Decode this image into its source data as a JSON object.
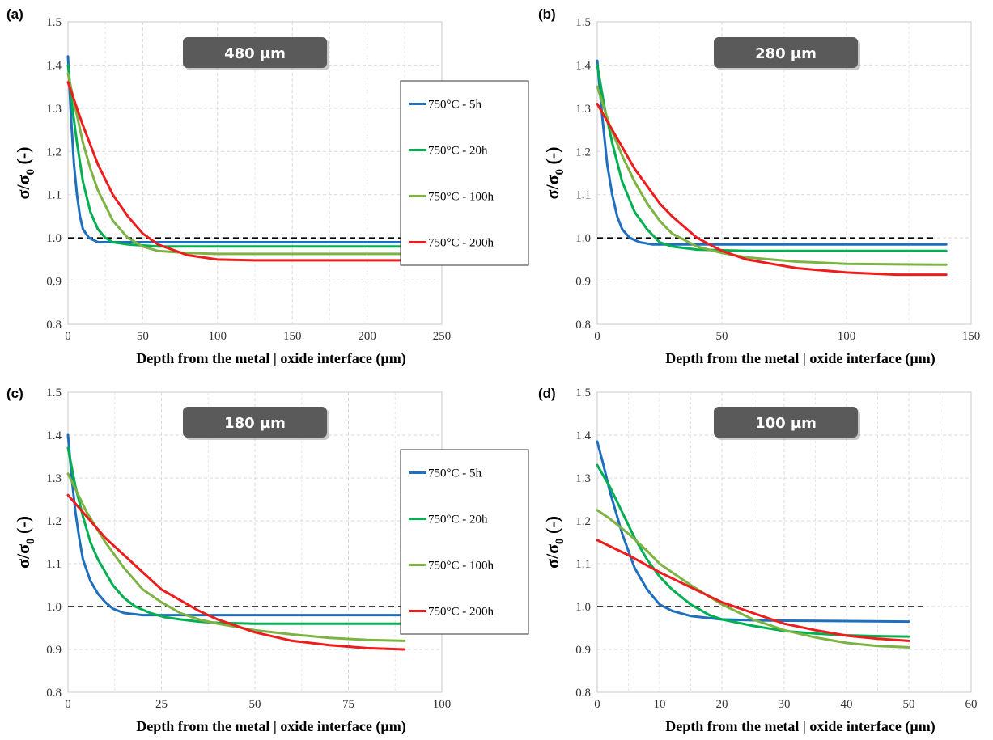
{
  "chart_data": [
    {
      "type": "line",
      "panel_label": "(a)",
      "badge": "480 µm",
      "xlabel": "Depth from the metal | oxide interface (µm)",
      "ylabel": "σ/σ₀ (-)",
      "ylabel_main": "σ/σ",
      "ylabel_sub": "0",
      "ylabel_tail": " (-)",
      "xlim": [
        0,
        250
      ],
      "ylim": [
        0.8,
        1.5
      ],
      "xticks": [
        "0",
        "50",
        "100",
        "150",
        "200",
        "250"
      ],
      "yticks": [
        "0.8",
        "0.9",
        "1.0",
        "1.1",
        "1.2",
        "1.3",
        "1.4",
        "1.5"
      ],
      "grid": true,
      "legend": "right",
      "reference_line": {
        "y": 1.0,
        "style": "dashed",
        "x_range": [
          0,
          226
        ]
      },
      "series": [
        {
          "name": "750°C - 5h",
          "color": "#1f6fbf",
          "x": [
            0,
            2,
            4,
            6,
            8,
            10,
            14,
            20,
            30,
            50,
            100,
            150,
            225
          ],
          "y": [
            1.42,
            1.28,
            1.17,
            1.1,
            1.05,
            1.02,
            1.0,
            0.99,
            0.99,
            0.99,
            0.99,
            0.99,
            0.99
          ]
        },
        {
          "name": "750°C - 20h",
          "color": "#00b050",
          "x": [
            0,
            3,
            6,
            10,
            15,
            20,
            25,
            30,
            40,
            60,
            100,
            150,
            225
          ],
          "y": [
            1.4,
            1.3,
            1.22,
            1.13,
            1.06,
            1.02,
            1.0,
            0.99,
            0.985,
            0.98,
            0.98,
            0.98,
            0.98
          ]
        },
        {
          "name": "750°C - 100h",
          "color": "#7cb342",
          "x": [
            0,
            5,
            10,
            15,
            20,
            30,
            40,
            50,
            60,
            80,
            100,
            150,
            225
          ],
          "y": [
            1.38,
            1.3,
            1.22,
            1.16,
            1.11,
            1.04,
            1.0,
            0.98,
            0.97,
            0.965,
            0.963,
            0.963,
            0.963
          ]
        },
        {
          "name": "750°C - 200h",
          "color": "#ee1c1c",
          "x": [
            0,
            5,
            10,
            20,
            30,
            40,
            50,
            60,
            80,
            100,
            125,
            150,
            225
          ],
          "y": [
            1.36,
            1.31,
            1.26,
            1.17,
            1.1,
            1.05,
            1.01,
            0.985,
            0.96,
            0.95,
            0.948,
            0.948,
            0.948
          ]
        }
      ]
    },
    {
      "type": "line",
      "panel_label": "(b)",
      "badge": "280 µm",
      "xlabel": "Depth from the metal | oxide interface (µm)",
      "ylabel": "σ/σ₀ (-)",
      "ylabel_main": "σ/σ",
      "ylabel_sub": "0",
      "ylabel_tail": " (-)",
      "xlim": [
        0,
        150
      ],
      "ylim": [
        0.8,
        1.5
      ],
      "xticks": [
        "0",
        "50",
        "100",
        "150"
      ],
      "yticks": [
        "0.8",
        "0.9",
        "1.0",
        "1.1",
        "1.2",
        "1.3",
        "1.4",
        "1.5"
      ],
      "grid": true,
      "legend": "none",
      "reference_line": {
        "y": 1.0,
        "style": "dashed",
        "x_range": [
          0,
          135
        ]
      },
      "series": [
        {
          "name": "750°C - 5h",
          "color": "#1f6fbf",
          "x": [
            0,
            2,
            4,
            6,
            8,
            10,
            13,
            17,
            22,
            30,
            50,
            100,
            140
          ],
          "y": [
            1.41,
            1.28,
            1.17,
            1.1,
            1.05,
            1.02,
            1.0,
            0.99,
            0.985,
            0.985,
            0.985,
            0.985,
            0.985
          ]
        },
        {
          "name": "750°C - 20h",
          "color": "#00b050",
          "x": [
            0,
            3,
            6,
            10,
            15,
            20,
            25,
            30,
            40,
            60,
            100,
            140
          ],
          "y": [
            1.4,
            1.3,
            1.22,
            1.13,
            1.06,
            1.02,
            0.99,
            0.98,
            0.973,
            0.97,
            0.97,
            0.97
          ]
        },
        {
          "name": "750°C - 100h",
          "color": "#7cb342",
          "x": [
            0,
            5,
            10,
            15,
            20,
            25,
            30,
            40,
            50,
            60,
            80,
            100,
            140
          ],
          "y": [
            1.35,
            1.26,
            1.19,
            1.13,
            1.08,
            1.04,
            1.01,
            0.98,
            0.965,
            0.955,
            0.945,
            0.94,
            0.938
          ]
        },
        {
          "name": "750°C - 200h",
          "color": "#ee1c1c",
          "x": [
            0,
            5,
            10,
            15,
            20,
            25,
            30,
            40,
            50,
            60,
            70,
            80,
            100,
            120,
            140
          ],
          "y": [
            1.31,
            1.26,
            1.21,
            1.16,
            1.12,
            1.08,
            1.05,
            1.0,
            0.97,
            0.95,
            0.94,
            0.93,
            0.92,
            0.915,
            0.915
          ]
        }
      ]
    },
    {
      "type": "line",
      "panel_label": "(c)",
      "badge": "180 µm",
      "xlabel": "Depth from the metal | oxide interface (µm)",
      "ylabel": "σ/σ₀ (-)",
      "ylabel_main": "σ/σ",
      "ylabel_sub": "0",
      "ylabel_tail": " (-)",
      "xlim": [
        0,
        100
      ],
      "ylim": [
        0.8,
        1.5
      ],
      "xticks": [
        "0",
        "25",
        "50",
        "75",
        "100"
      ],
      "yticks": [
        "0.8",
        "0.9",
        "1.0",
        "1.1",
        "1.2",
        "1.3",
        "1.4",
        "1.5"
      ],
      "grid": true,
      "legend": "right",
      "reference_line": {
        "y": 1.0,
        "style": "dashed",
        "x_range": [
          0,
          91
        ]
      },
      "series": [
        {
          "name": "750°C - 5h",
          "color": "#1f6fbf",
          "x": [
            0,
            1,
            2,
            3,
            4,
            6,
            8,
            10,
            12,
            15,
            20,
            30,
            50,
            90
          ],
          "y": [
            1.4,
            1.3,
            1.22,
            1.16,
            1.11,
            1.06,
            1.03,
            1.01,
            0.995,
            0.985,
            0.98,
            0.98,
            0.98,
            0.98
          ]
        },
        {
          "name": "750°C - 20h",
          "color": "#00b050",
          "x": [
            0,
            2,
            4,
            6,
            8,
            10,
            12,
            15,
            18,
            22,
            26,
            30,
            35,
            40,
            50,
            60,
            90
          ],
          "y": [
            1.37,
            1.28,
            1.21,
            1.15,
            1.11,
            1.08,
            1.05,
            1.02,
            1.0,
            0.985,
            0.975,
            0.97,
            0.965,
            0.962,
            0.96,
            0.96,
            0.96
          ]
        },
        {
          "name": "750°C - 100h",
          "color": "#7cb342",
          "x": [
            0,
            5,
            10,
            15,
            20,
            25,
            30,
            35,
            40,
            50,
            60,
            70,
            80,
            90
          ],
          "y": [
            1.31,
            1.22,
            1.15,
            1.09,
            1.04,
            1.01,
            0.985,
            0.97,
            0.96,
            0.945,
            0.935,
            0.927,
            0.922,
            0.92
          ]
        },
        {
          "name": "750°C - 200h",
          "color": "#ee1c1c",
          "x": [
            0,
            5,
            10,
            15,
            20,
            25,
            30,
            35,
            40,
            50,
            60,
            70,
            80,
            90
          ],
          "y": [
            1.26,
            1.21,
            1.16,
            1.12,
            1.08,
            1.04,
            1.015,
            0.99,
            0.97,
            0.94,
            0.92,
            0.91,
            0.903,
            0.9
          ]
        }
      ]
    },
    {
      "type": "line",
      "panel_label": "(d)",
      "badge": "100 µm",
      "xlabel": "Depth from the metal | oxide interface (µm)",
      "ylabel": "σ/σ₀ (-)",
      "ylabel_main": "σ/σ",
      "ylabel_sub": "0",
      "ylabel_tail": " (-)",
      "xlim": [
        0,
        60
      ],
      "ylim": [
        0.8,
        1.5
      ],
      "xticks": [
        "0",
        "10",
        "20",
        "30",
        "40",
        "50",
        "60"
      ],
      "yticks": [
        "0.8",
        "0.9",
        "1.0",
        "1.1",
        "1.2",
        "1.3",
        "1.4",
        "1.5"
      ],
      "grid": true,
      "legend": "none",
      "reference_line": {
        "y": 1.0,
        "style": "dashed",
        "x_range": [
          0,
          53
        ]
      },
      "series": [
        {
          "name": "750°C - 5h",
          "color": "#1f6fbf",
          "x": [
            0,
            1,
            2,
            3,
            4,
            5,
            6,
            8,
            10,
            12,
            15,
            20,
            25,
            30,
            40,
            50
          ],
          "y": [
            1.385,
            1.33,
            1.27,
            1.22,
            1.17,
            1.13,
            1.09,
            1.04,
            1.005,
            0.99,
            0.978,
            0.97,
            0.968,
            0.967,
            0.966,
            0.965
          ]
        },
        {
          "name": "750°C - 20h",
          "color": "#00b050",
          "x": [
            0,
            2,
            4,
            6,
            8,
            10,
            12,
            15,
            18,
            20,
            25,
            30,
            35,
            40,
            45,
            50
          ],
          "y": [
            1.33,
            1.28,
            1.22,
            1.16,
            1.11,
            1.07,
            1.04,
            1.005,
            0.98,
            0.97,
            0.955,
            0.943,
            0.937,
            0.933,
            0.931,
            0.93
          ]
        },
        {
          "name": "750°C - 100h",
          "color": "#7cb342",
          "x": [
            0,
            2,
            5,
            8,
            10,
            13,
            15,
            20,
            25,
            30,
            35,
            40,
            45,
            50
          ],
          "y": [
            1.225,
            1.205,
            1.17,
            1.13,
            1.1,
            1.07,
            1.05,
            1.005,
            0.97,
            0.945,
            0.928,
            0.915,
            0.908,
            0.905
          ]
        },
        {
          "name": "750°C - 200h",
          "color": "#ee1c1c",
          "x": [
            0,
            5,
            10,
            15,
            20,
            25,
            30,
            35,
            40,
            45,
            50
          ],
          "y": [
            1.155,
            1.12,
            1.08,
            1.045,
            1.01,
            0.985,
            0.96,
            0.945,
            0.932,
            0.925,
            0.92
          ]
        }
      ]
    }
  ]
}
